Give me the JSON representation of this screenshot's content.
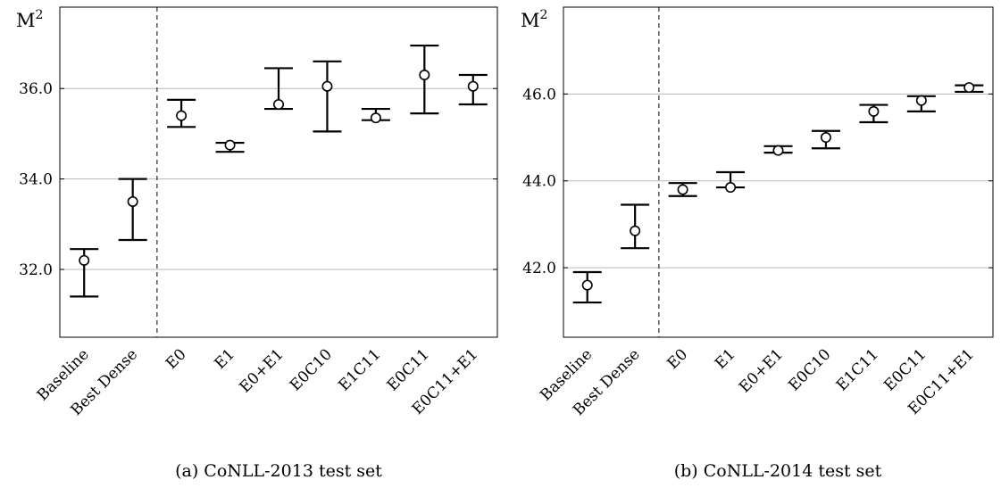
{
  "chart_data": [
    {
      "type": "errorbar",
      "caption": "(a) CoNLL-2013 test set",
      "ylabel": "M",
      "ylabel_sup": "2",
      "categories": [
        "Baseline",
        "Best Dense",
        "E0",
        "E1",
        "E0+E1",
        "E0C10",
        "E1C11",
        "E0C11",
        "E0C11+E1"
      ],
      "ylim": [
        30.5,
        37.8
      ],
      "yticks": [
        32.0,
        34.0,
        36.0
      ],
      "ytick_labels": [
        "32.0",
        "34.0",
        "36.0"
      ],
      "separator_after_index": 1,
      "grid": true,
      "series": [
        {
          "values": [
            32.2,
            33.5,
            35.4,
            34.75,
            35.65,
            36.05,
            35.35,
            36.3,
            36.05
          ],
          "err_low": [
            31.4,
            32.65,
            35.15,
            34.6,
            35.55,
            35.05,
            35.3,
            35.45,
            35.65
          ],
          "err_high": [
            32.45,
            34.0,
            35.75,
            34.8,
            36.45,
            36.6,
            35.55,
            36.95,
            36.3
          ]
        }
      ]
    },
    {
      "type": "errorbar",
      "caption": "(b) CoNLL-2014 test set",
      "ylabel": "M",
      "ylabel_sup": "2",
      "categories": [
        "Baseline",
        "Best Dense",
        "E0",
        "E1",
        "E0+E1",
        "E0C10",
        "E1C11",
        "E0C11",
        "E0C11+E1"
      ],
      "ylim": [
        40.4,
        48.0
      ],
      "yticks": [
        42.0,
        44.0,
        46.0
      ],
      "ytick_labels": [
        "42.0",
        "44.0",
        "46.0"
      ],
      "separator_after_index": 1,
      "grid": true,
      "series": [
        {
          "values": [
            41.6,
            42.85,
            43.8,
            43.85,
            44.7,
            45.0,
            45.6,
            45.85,
            46.15
          ],
          "err_low": [
            41.2,
            42.45,
            43.65,
            43.85,
            44.65,
            44.75,
            45.35,
            45.6,
            46.05
          ],
          "err_high": [
            41.9,
            43.45,
            43.95,
            44.2,
            44.8,
            45.15,
            45.75,
            45.95,
            46.2
          ]
        }
      ]
    }
  ]
}
